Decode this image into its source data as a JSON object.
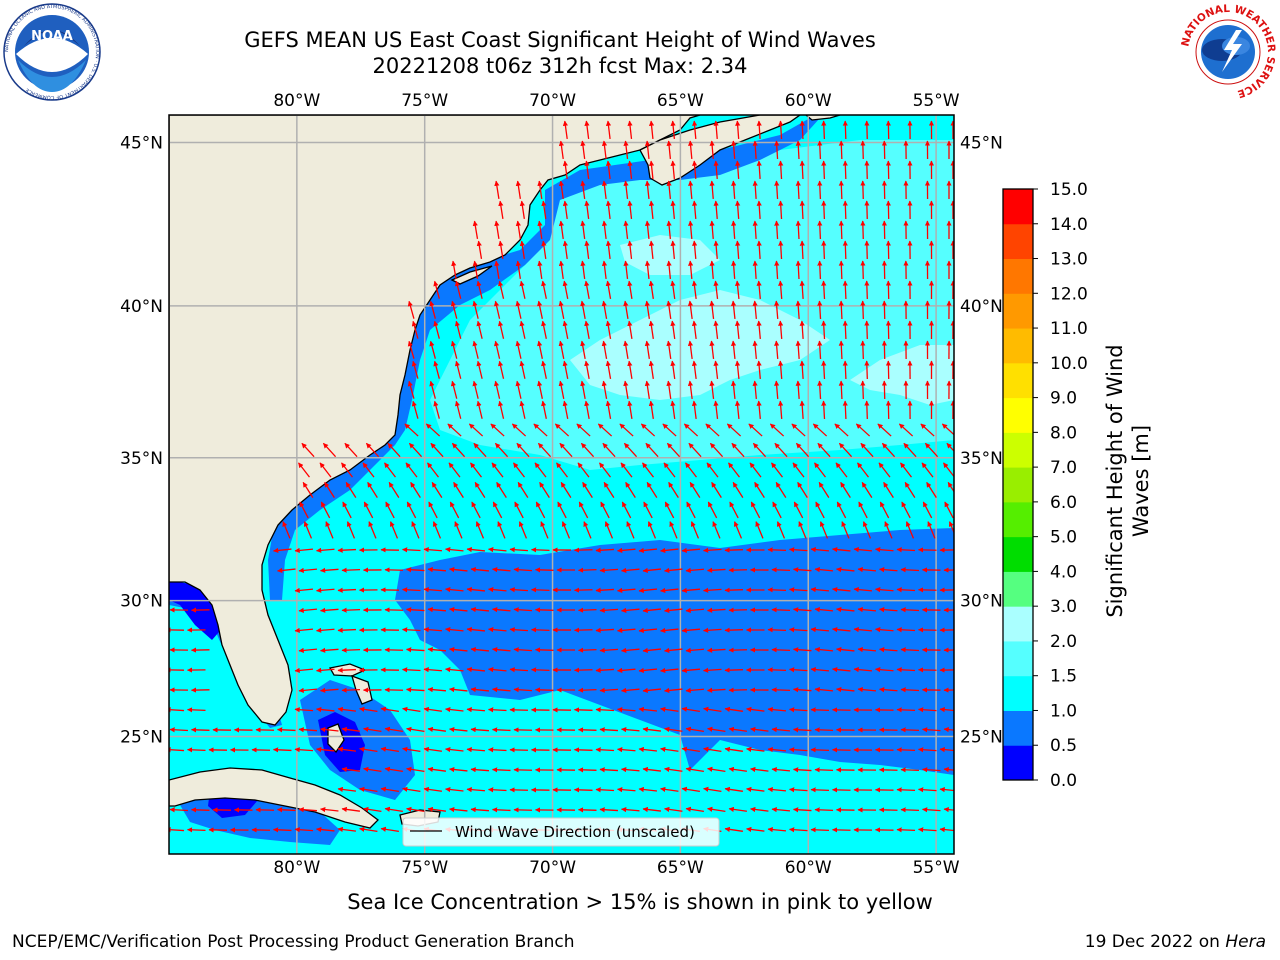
{
  "title": {
    "line1": "GEFS MEAN US East Coast Significant Height of Wind Waves",
    "line2": "20221208 t06z 312h fcst   Max: 2.34"
  },
  "map": {
    "lon_ticks": [
      "80°W",
      "75°W",
      "70°W",
      "65°W",
      "60°W",
      "55°W"
    ],
    "lat_ticks": [
      "45°N",
      "40°N",
      "35°N",
      "30°N",
      "25°N"
    ],
    "legend_label": "Wind Wave Direction (unscaled)",
    "extent": {
      "lon": [
        -85,
        -54.3
      ],
      "lat": [
        20.5,
        45.8
      ]
    },
    "colors": {
      "land": "#efecdc",
      "coast": "#000000",
      "arrow": "#ff0000",
      "grid": "#b0b0b0"
    }
  },
  "colorbar": {
    "label": "Significant Height of Wind Waves [m]",
    "ticks": [
      "0.0",
      "0.5",
      "1.0",
      "1.5",
      "2.0",
      "3.0",
      "4.0",
      "5.0",
      "6.0",
      "7.0",
      "8.0",
      "9.0",
      "10.0",
      "11.0",
      "12.0",
      "13.0",
      "14.0",
      "15.0"
    ],
    "colors": [
      "#0000ff",
      "#0a78ff",
      "#00ffff",
      "#55ffff",
      "#aaffff",
      "#55ff80",
      "#00dd00",
      "#55ee00",
      "#99ee00",
      "#ccff00",
      "#ffff00",
      "#ffe000",
      "#ffbb00",
      "#ff9900",
      "#ff7700",
      "#ff4400",
      "#ff0000"
    ]
  },
  "ice_note": "Sea Ice Concentration > 15% is shown in pink to yellow",
  "footer": {
    "left": "NCEP/EMC/Verification Post Processing Product Generation Branch",
    "right_date": "19 Dec 2022 on",
    "right_machine": "Hera"
  },
  "logos": {
    "noaa_text": "NOAA",
    "noaa_ring": "NATIONAL OCEANIC AND ATMOSPHERIC ADMINISTRATION · U.S. DEPARTMENT OF COMMERCE",
    "nws_ring": "NATIONAL WEATHER SERVICE"
  }
}
